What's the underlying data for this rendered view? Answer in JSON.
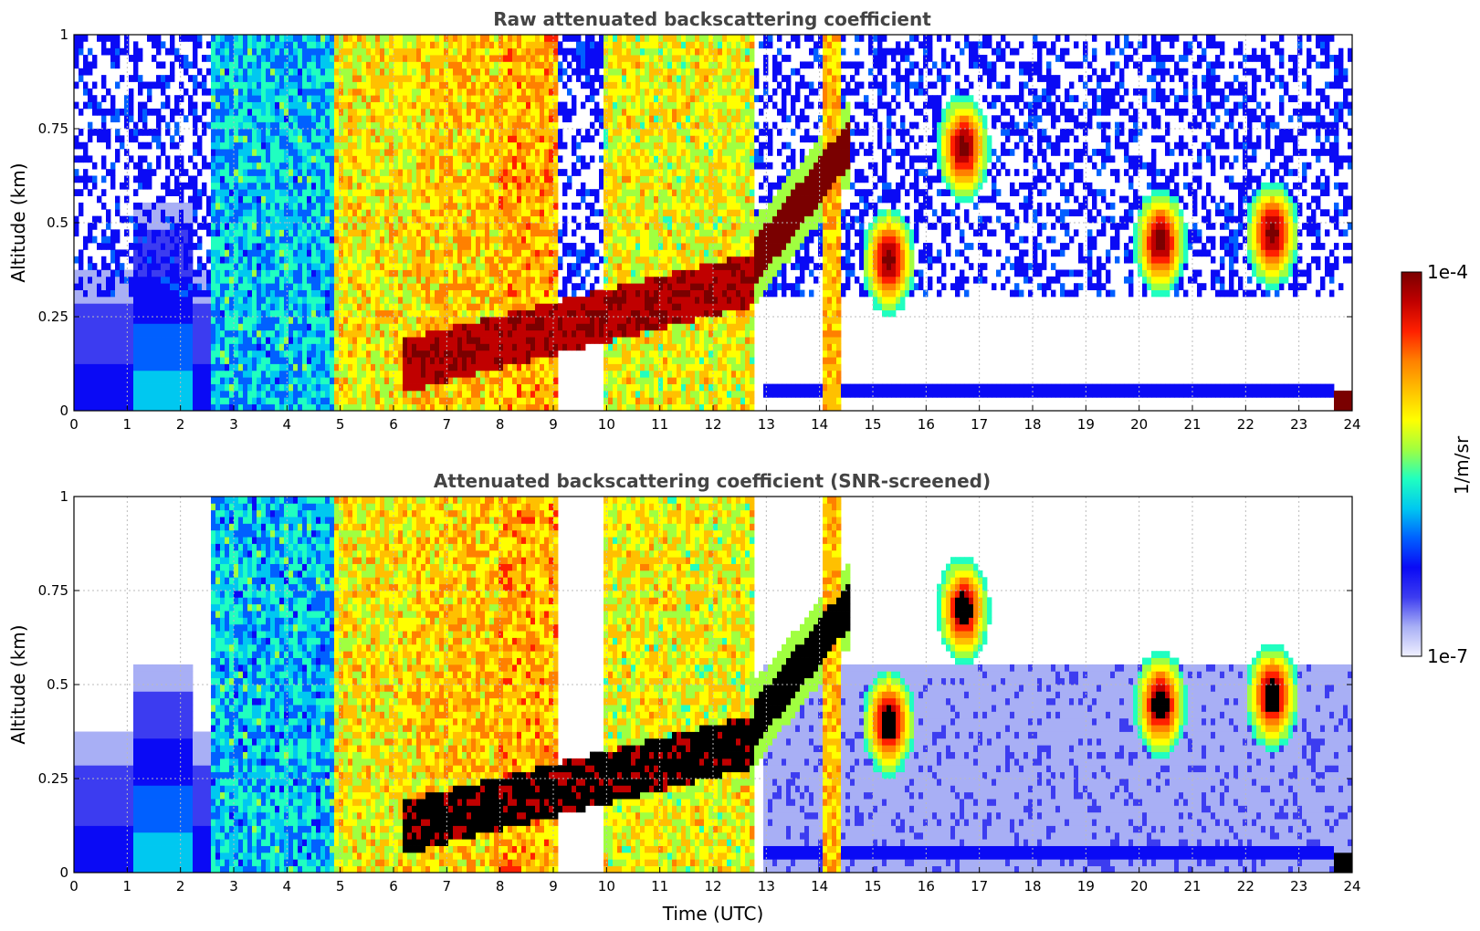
{
  "chart_data": {
    "type": "heatmap",
    "colorbar": {
      "min_label": "1e-7",
      "max_label": "1e-4",
      "label": "1/m/sr",
      "colormap": [
        "#f0f0ff",
        "#a8aff5",
        "#3c3cf0",
        "#0a0af5",
        "#0060ff",
        "#00c8f0",
        "#20ffc0",
        "#a0ff40",
        "#ffff00",
        "#ffc000",
        "#ff8000",
        "#ff2000",
        "#c00000",
        "#7a0000"
      ]
    },
    "panels": [
      {
        "title": "Raw attenuated backscattering coefficient",
        "ylabel": "Altitude (km)",
        "xlabel": "",
        "x_ticks": [
          "0",
          "1",
          "2",
          "3",
          "4",
          "5",
          "6",
          "7",
          "8",
          "9",
          "10",
          "11",
          "12",
          "13",
          "14",
          "15",
          "16",
          "17",
          "18",
          "19",
          "20",
          "21",
          "22",
          "23",
          "24"
        ],
        "y_ticks": [
          "0",
          "0.25",
          "0.5",
          "0.75",
          "1"
        ],
        "xlim": [
          0,
          24
        ],
        "ylim": [
          0,
          1
        ],
        "screened": false
      },
      {
        "title": "Attenuated backscattering coefficient (SNR-screened)",
        "ylabel": "Altitude (km)",
        "xlabel": "Time (UTC)",
        "x_ticks": [
          "0",
          "1",
          "2",
          "3",
          "4",
          "5",
          "6",
          "7",
          "8",
          "9",
          "10",
          "11",
          "12",
          "13",
          "14",
          "15",
          "16",
          "17",
          "18",
          "19",
          "20",
          "21",
          "22",
          "23",
          "24"
        ],
        "y_ticks": [
          "0",
          "0.25",
          "0.5",
          "0.75",
          "1"
        ],
        "xlim": [
          0,
          24
        ],
        "ylim": [
          0,
          1
        ],
        "screened": true
      }
    ],
    "features": [
      {
        "name": "fog-precip-column",
        "t_start": 2.6,
        "t_end": 4.9,
        "level": 5.0
      },
      {
        "name": "fog-precip-column",
        "t_start": 4.9,
        "t_end": 6.4,
        "level": 8.2
      },
      {
        "name": "fog-precip-column",
        "t_start": 6.4,
        "t_end": 8.0,
        "level": 8.8
      },
      {
        "name": "fog-precip-column",
        "t_start": 8.0,
        "t_end": 9.1,
        "level": 9.2
      },
      {
        "name": "precip-column",
        "t_start": 9.9,
        "t_end": 12.8,
        "level": 8.0
      },
      {
        "name": "cloud-base-layer",
        "t_start": 6.2,
        "t_end": 12.8,
        "alt_start": 0.12,
        "alt_end": 0.35
      },
      {
        "name": "rising-cloud-layer",
        "t_start": 12.8,
        "t_end": 14.6,
        "alt_start": 0.4,
        "alt_end": 0.72
      },
      {
        "name": "cloud-15h",
        "t_center": 15.3,
        "alt_center": 0.4
      },
      {
        "name": "cloud-16-8h",
        "t_center": 16.7,
        "alt_center": 0.7
      },
      {
        "name": "cloud-20-5h",
        "t_center": 20.4,
        "alt_center": 0.45
      },
      {
        "name": "cloud-22-5h",
        "t_center": 22.5,
        "alt_center": 0.47
      },
      {
        "name": "rain-shaft-14-2h",
        "t_center": 14.25,
        "alt_center": 0.5
      },
      {
        "name": "surface-layer",
        "t_start": 12.9,
        "t_end": 23.7,
        "alt_center": 0.05
      }
    ]
  }
}
